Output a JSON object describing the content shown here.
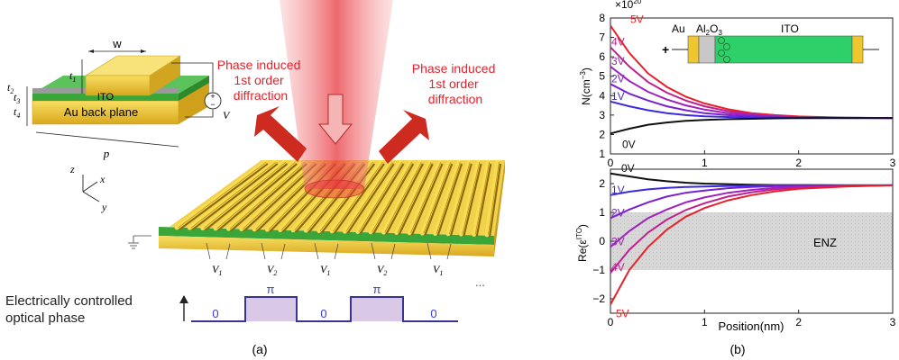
{
  "panel_a": {
    "caption": "(a)",
    "inset": {
      "w_label": "w",
      "t1_label": "t",
      "t1_sub": "1",
      "t2_label": "t",
      "t2_sub": "2",
      "t3_label": "t",
      "t3_sub": "3",
      "t4_label": "t",
      "t4_sub": "4",
      "p_label": "p",
      "ito_label": "ITO",
      "backplane_label": "Au back plane",
      "source_label": "V"
    },
    "axes": {
      "z": "z",
      "x": "x",
      "y": "y"
    },
    "diffraction_left": [
      "Phase induced",
      "1st order",
      "diffraction"
    ],
    "diffraction_right": [
      "Phase induced",
      "1st order",
      "diffraction"
    ],
    "voltages": [
      "V",
      "V",
      "V",
      "V",
      "V"
    ],
    "voltage_subs": [
      "1",
      "2",
      "1",
      "2",
      "1"
    ],
    "ellipsis": "...",
    "phase_label": [
      "Electrically controlled",
      "optical phase"
    ],
    "phase_values": [
      "0",
      "π",
      "0",
      "π",
      "0"
    ],
    "colors": {
      "gold": "#f0c62e",
      "ito": "#3aa63a",
      "beam": "#e8343c",
      "arrow": "#d42a22",
      "phase": "#3a3396",
      "phase_fill": "#d9c8e6"
    }
  },
  "panel_b": {
    "caption": "(b)",
    "chart_data": [
      {
        "type": "line",
        "ylabel": "N(cm",
        "ylabel_sup": "−3",
        "ylabel_end": ")",
        "scale_base": "×10",
        "scale_exp": "20",
        "xlim": [
          0,
          3
        ],
        "ylim": [
          1,
          8
        ],
        "yticks": [
          "1",
          "2",
          "3",
          "4",
          "5",
          "6",
          "7",
          "8"
        ],
        "xticks": [
          "0",
          "1",
          "2",
          "3"
        ],
        "x": [
          0,
          0.2,
          0.4,
          0.6,
          0.8,
          1.0,
          1.25,
          1.5,
          1.75,
          2.0,
          2.5,
          3.0
        ],
        "series": [
          {
            "name": "5V",
            "color": "#e8202a",
            "values": [
              7.6,
              6.2,
              5.15,
              4.45,
              3.95,
              3.6,
              3.3,
              3.1,
              3.0,
              2.93,
              2.87,
              2.85
            ]
          },
          {
            "name": "4V",
            "color": "#c0208f",
            "values": [
              6.5,
              5.5,
              4.7,
              4.15,
              3.75,
              3.45,
              3.2,
              3.05,
              2.95,
              2.9,
              2.86,
              2.85
            ]
          },
          {
            "name": "3V",
            "color": "#a020c0",
            "values": [
              5.5,
              4.75,
              4.2,
              3.8,
              3.5,
              3.28,
              3.1,
              3.0,
              2.93,
              2.89,
              2.86,
              2.85
            ]
          },
          {
            "name": "2V",
            "color": "#7a20d0",
            "values": [
              4.6,
              4.1,
              3.75,
              3.45,
              3.25,
              3.1,
              3.0,
              2.94,
              2.9,
              2.87,
              2.85,
              2.85
            ]
          },
          {
            "name": "1V",
            "color": "#3a2ae0",
            "values": [
              3.7,
              3.45,
              3.25,
              3.1,
              3.0,
              2.94,
              2.9,
              2.87,
              2.86,
              2.85,
              2.85,
              2.85
            ]
          },
          {
            "name": "0V",
            "color": "#111111",
            "values": [
              2.05,
              2.3,
              2.5,
              2.62,
              2.7,
              2.75,
              2.79,
              2.81,
              2.83,
              2.84,
              2.85,
              2.85
            ]
          }
        ],
        "inset_labels": {
          "au": "Au",
          "oxide": "Al",
          "oxide_sub1": "2",
          "oxide_mid": "O",
          "oxide_sub2": "3",
          "ito": "ITO",
          "plus": "+"
        }
      },
      {
        "type": "line",
        "ylabel": "Re(ε",
        "ylabel_sup": "ITO",
        "ylabel_end": ")",
        "xlabel": "Position(nm)",
        "xlim": [
          0,
          3
        ],
        "ylim": [
          -2.5,
          2.5
        ],
        "yticks": [
          "−2",
          "−1",
          "0",
          "1",
          "2"
        ],
        "xticks": [
          "0",
          "1",
          "2",
          "3"
        ],
        "shaded_band": [
          -1,
          1
        ],
        "shaded_label": "ENZ",
        "x": [
          0,
          0.2,
          0.4,
          0.6,
          0.8,
          1.0,
          1.25,
          1.5,
          1.75,
          2.0,
          2.5,
          3.0
        ],
        "series": [
          {
            "name": "0V",
            "color": "#111111",
            "values": [
              2.35,
              2.25,
              2.15,
              2.08,
              2.03,
              2.0,
              1.98,
              1.96,
              1.95,
              1.95,
              1.94,
              1.94
            ]
          },
          {
            "name": "1V",
            "color": "#3a2ae0",
            "values": [
              1.6,
              1.72,
              1.8,
              1.85,
              1.88,
              1.9,
              1.92,
              1.93,
              1.94,
              1.94,
              1.94,
              1.94
            ]
          },
          {
            "name": "2V",
            "color": "#7a20d0",
            "values": [
              0.8,
              1.1,
              1.35,
              1.55,
              1.68,
              1.76,
              1.84,
              1.88,
              1.91,
              1.92,
              1.93,
              1.94
            ]
          },
          {
            "name": "3V",
            "color": "#a020c0",
            "values": [
              -0.2,
              0.35,
              0.8,
              1.1,
              1.35,
              1.52,
              1.68,
              1.78,
              1.85,
              1.89,
              1.92,
              1.94
            ]
          },
          {
            "name": "4V",
            "color": "#c0208f",
            "values": [
              -1.1,
              -0.3,
              0.3,
              0.75,
              1.08,
              1.32,
              1.55,
              1.7,
              1.8,
              1.86,
              1.91,
              1.94
            ]
          },
          {
            "name": "5V",
            "color": "#e8202a",
            "values": [
              -2.2,
              -1.0,
              -0.2,
              0.4,
              0.85,
              1.15,
              1.42,
              1.6,
              1.73,
              1.82,
              1.9,
              1.94
            ]
          }
        ]
      }
    ]
  }
}
